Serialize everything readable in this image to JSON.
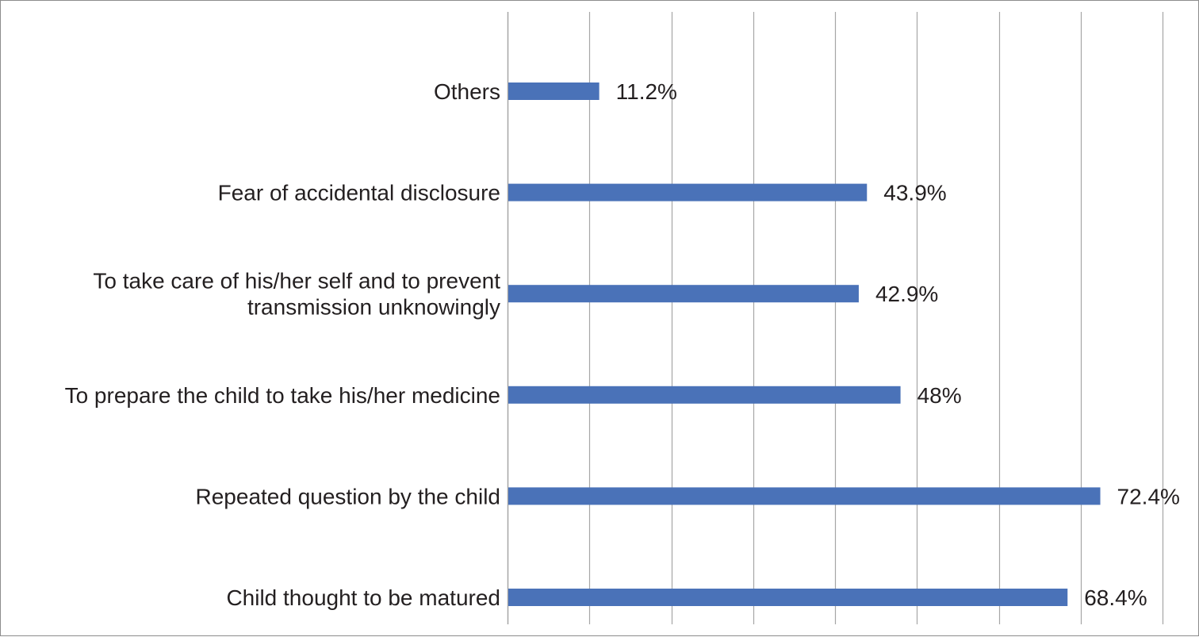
{
  "chart_data": {
    "type": "bar",
    "orientation": "horizontal",
    "categories": [
      [
        "Child thought to be matured"
      ],
      [
        "Repeated question by the child"
      ],
      [
        "To prepare the child to take his/her medicine"
      ],
      [
        "To take care of his/her self and to prevent",
        "transmission unknowingly"
      ],
      [
        "Fear of accidental disclosure"
      ],
      [
        "Others"
      ]
    ],
    "values": [
      68.4,
      72.4,
      48,
      42.9,
      43.9,
      11.2
    ],
    "value_labels": [
      "68.4%",
      "72.4%",
      "48%",
      "42.9%",
      "43.9%",
      "11.2%"
    ],
    "xlim": [
      0,
      80
    ],
    "x_gridline_step": 10,
    "grid": true,
    "colors": {
      "bar": "#4a72b8",
      "gridline": "#a6a6a6",
      "text": "#231f20",
      "frame": "#8c8c8c"
    }
  }
}
